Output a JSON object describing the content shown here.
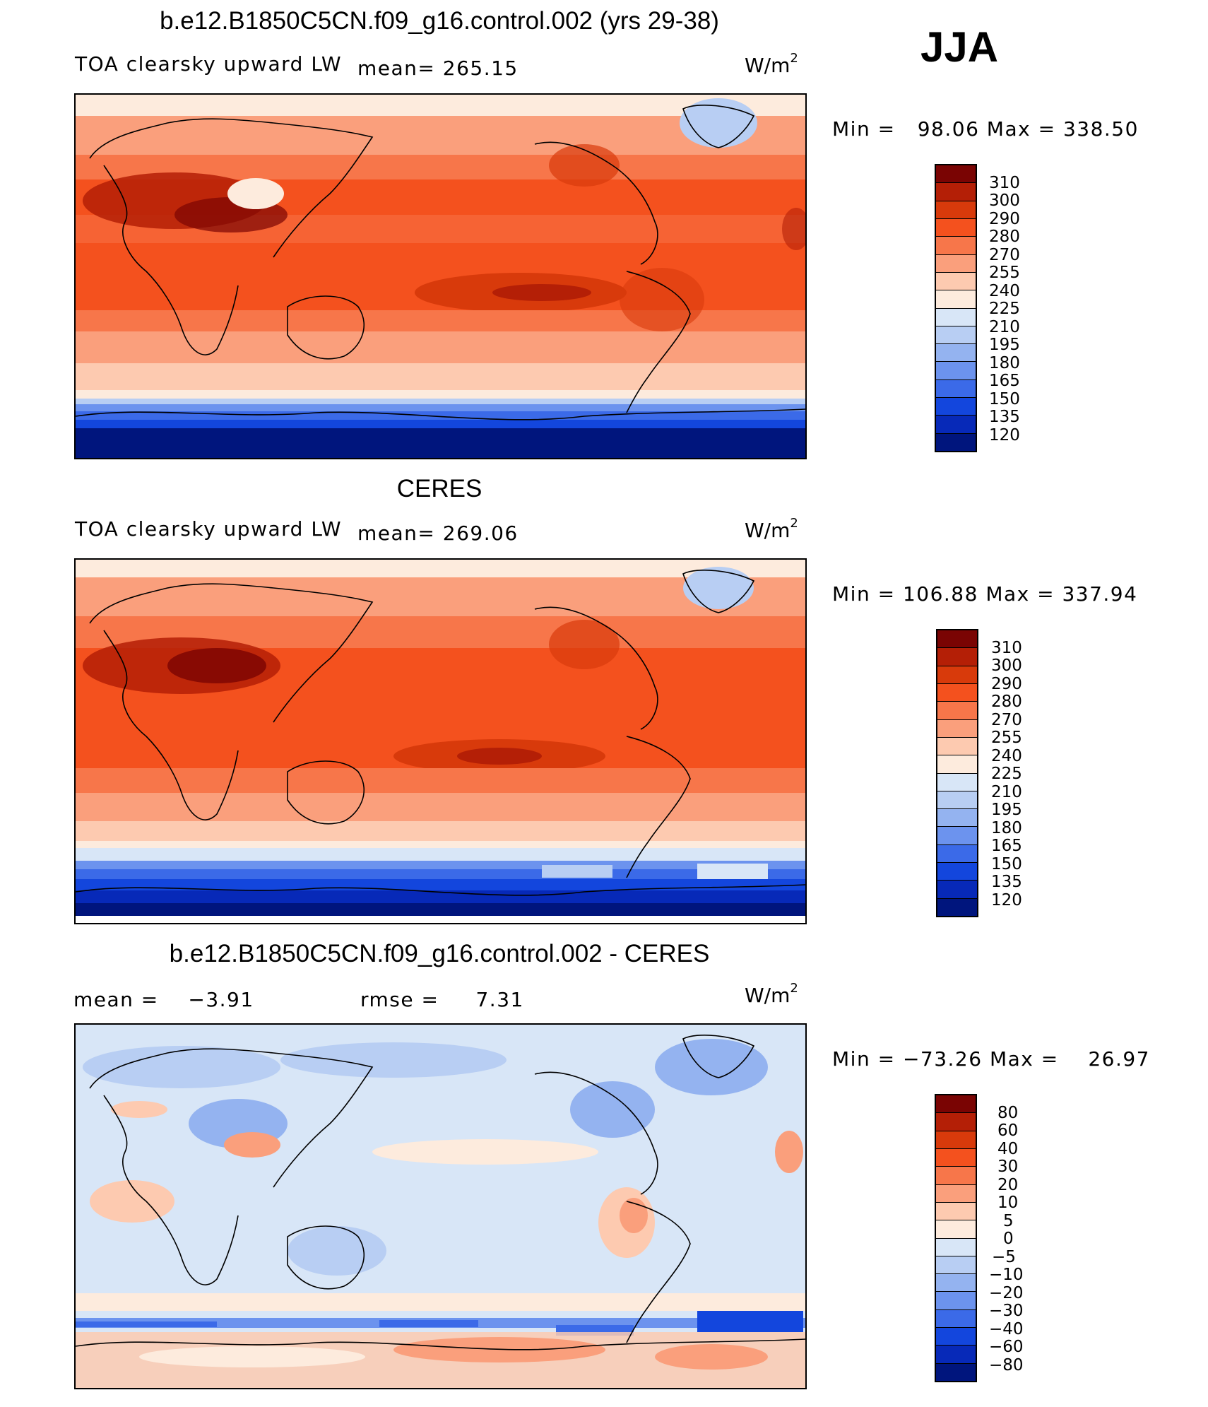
{
  "season": "JJA",
  "units_base": "W/m",
  "units_exp": "2",
  "panels": [
    {
      "title": "b.e12.B1850C5CN.f09_g16.control.002 (yrs 29-38)",
      "variable": "TOA clearsky upward LW",
      "mean_label": "mean= 265.15",
      "minmax": "Min =   98.06 Max = 338.50",
      "colorbar": {
        "labels": [
          "310",
          "300",
          "290",
          "280",
          "270",
          "255",
          "240",
          "225",
          "210",
          "195",
          "180",
          "165",
          "150",
          "135",
          "120"
        ],
        "colors": [
          "#7a0403",
          "#b41f06",
          "#d83a0b",
          "#f4511e",
          "#f7764a",
          "#fa9f7c",
          "#fdcab0",
          "#fdebdd",
          "#d8e6f7",
          "#b8cef3",
          "#94b3f0",
          "#6c93ee",
          "#3b6ae8",
          "#1346dd",
          "#0729b8",
          "#00157d"
        ]
      }
    },
    {
      "title": "CERES",
      "variable": "TOA clearsky upward LW",
      "mean_label": "mean= 269.06",
      "minmax": "Min = 106.88 Max = 337.94",
      "colorbar": {
        "labels": [
          "310",
          "300",
          "290",
          "280",
          "270",
          "255",
          "240",
          "225",
          "210",
          "195",
          "180",
          "165",
          "150",
          "135",
          "120"
        ],
        "colors": [
          "#7a0403",
          "#b41f06",
          "#d83a0b",
          "#f4511e",
          "#f7764a",
          "#fa9f7c",
          "#fdcab0",
          "#fdebdd",
          "#d8e6f7",
          "#b8cef3",
          "#94b3f0",
          "#6c93ee",
          "#3b6ae8",
          "#1346dd",
          "#0729b8",
          "#00157d"
        ]
      }
    },
    {
      "title": "b.e12.B1850C5CN.f09_g16.control.002 - CERES",
      "mean_label": "mean =    −3.91",
      "rmse_label": "rmse =     7.31",
      "minmax": "Min = −73.26 Max =    26.97",
      "colorbar": {
        "labels": [
          "80",
          "60",
          "40",
          "30",
          "20",
          "10",
          "5",
          "0",
          "−5",
          "−10",
          "−20",
          "−30",
          "−40",
          "−60",
          "−80"
        ],
        "colors": [
          "#7a0403",
          "#b41f06",
          "#d83a0b",
          "#f4511e",
          "#f7764a",
          "#fa9f7c",
          "#fdcab0",
          "#fdebdd",
          "#d8e6f7",
          "#b8cef3",
          "#94b3f0",
          "#6c93ee",
          "#3b6ae8",
          "#1346dd",
          "#0729b8",
          "#00157d"
        ]
      }
    }
  ]
}
